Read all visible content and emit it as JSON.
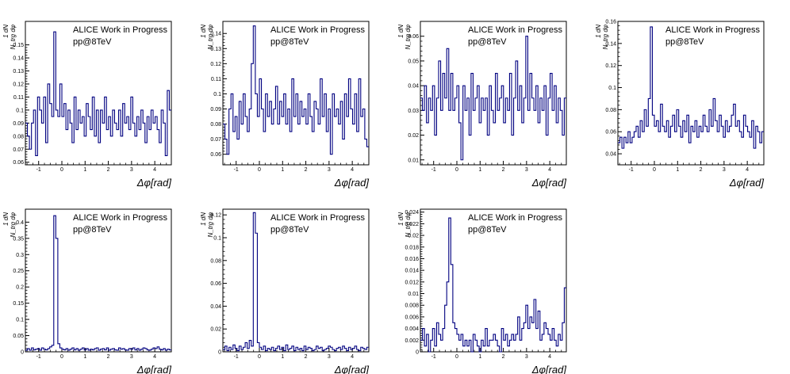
{
  "figure": {
    "annotation_line1": "ALICE Work in Progress",
    "annotation_line2": "pp@8TeV",
    "x_axis_label": "Δφ[rad]",
    "y_axis_label_top": "1  dN",
    "y_axis_label_bottom": "N_trg dφ",
    "line_color": "#000080"
  },
  "chart_data": [
    {
      "type": "line",
      "step": true,
      "xlim": [
        -1.5708,
        4.7124
      ],
      "ylim": [
        0.058,
        0.168
      ],
      "xticks": [
        -1,
        0,
        1,
        2,
        3,
        4
      ],
      "yticks": [
        0.06,
        0.07,
        0.08,
        0.09,
        0.1,
        0.11,
        0.12,
        0.13,
        0.14,
        0.15
      ],
      "ytick_labels": [
        "0.06",
        "0.07",
        "0.08",
        "0.09",
        "0.1",
        "0.11",
        "0.12",
        "0.13",
        "0.14",
        "0.15"
      ],
      "values": [
        0.09,
        0.08,
        0.07,
        0.09,
        0.1,
        0.065,
        0.11,
        0.1,
        0.09,
        0.11,
        0.075,
        0.12,
        0.105,
        0.095,
        0.16,
        0.1,
        0.095,
        0.12,
        0.095,
        0.105,
        0.085,
        0.1,
        0.09,
        0.075,
        0.11,
        0.085,
        0.1,
        0.09,
        0.095,
        0.08,
        0.105,
        0.095,
        0.085,
        0.11,
        0.08,
        0.1,
        0.075,
        0.1,
        0.09,
        0.11,
        0.085,
        0.095,
        0.08,
        0.1,
        0.09,
        0.085,
        0.1,
        0.08,
        0.105,
        0.09,
        0.095,
        0.085,
        0.11,
        0.09,
        0.08,
        0.095,
        0.085,
        0.1,
        0.09,
        0.075,
        0.095,
        0.085,
        0.1,
        0.09,
        0.095,
        0.085,
        0.075,
        0.1,
        0.09,
        0.065,
        0.115,
        0.1
      ]
    },
    {
      "type": "line",
      "step": true,
      "xlim": [
        -1.5708,
        4.7124
      ],
      "ylim": [
        0.053,
        0.148
      ],
      "xticks": [
        -1,
        0,
        1,
        2,
        3,
        4
      ],
      "yticks": [
        0.06,
        0.07,
        0.08,
        0.09,
        0.1,
        0.11,
        0.12,
        0.13,
        0.14
      ],
      "ytick_labels": [
        "0.06",
        "0.07",
        "0.08",
        "0.09",
        "0.1",
        "0.11",
        "0.12",
        "0.13",
        "0.14"
      ],
      "values": [
        0.08,
        0.07,
        0.06,
        0.09,
        0.1,
        0.075,
        0.085,
        0.07,
        0.095,
        0.08,
        0.1,
        0.085,
        0.075,
        0.09,
        0.12,
        0.145,
        0.1,
        0.085,
        0.11,
        0.09,
        0.075,
        0.1,
        0.085,
        0.095,
        0.08,
        0.09,
        0.105,
        0.08,
        0.095,
        0.085,
        0.1,
        0.08,
        0.09,
        0.075,
        0.11,
        0.085,
        0.1,
        0.08,
        0.095,
        0.085,
        0.09,
        0.08,
        0.1,
        0.085,
        0.075,
        0.095,
        0.09,
        0.08,
        0.11,
        0.085,
        0.1,
        0.075,
        0.09,
        0.06,
        0.1,
        0.085,
        0.09,
        0.08,
        0.095,
        0.07,
        0.1,
        0.085,
        0.11,
        0.09,
        0.08,
        0.1,
        0.075,
        0.11,
        0.085,
        0.09,
        0.07,
        0.065
      ]
    },
    {
      "type": "line",
      "step": true,
      "xlim": [
        -1.5708,
        4.7124
      ],
      "ylim": [
        0.008,
        0.066
      ],
      "xticks": [
        -1,
        0,
        1,
        2,
        3,
        4
      ],
      "yticks": [
        0.01,
        0.02,
        0.03,
        0.04,
        0.05,
        0.06
      ],
      "ytick_labels": [
        "0.01",
        "0.02",
        "0.03",
        "0.04",
        "0.05",
        "0.06"
      ],
      "values": [
        0.035,
        0.03,
        0.04,
        0.025,
        0.035,
        0.03,
        0.04,
        0.02,
        0.035,
        0.05,
        0.03,
        0.045,
        0.035,
        0.055,
        0.03,
        0.045,
        0.03,
        0.035,
        0.04,
        0.025,
        0.01,
        0.04,
        0.03,
        0.035,
        0.02,
        0.045,
        0.03,
        0.035,
        0.04,
        0.025,
        0.035,
        0.03,
        0.035,
        0.02,
        0.04,
        0.03,
        0.025,
        0.045,
        0.03,
        0.035,
        0.04,
        0.025,
        0.035,
        0.03,
        0.045,
        0.02,
        0.035,
        0.05,
        0.03,
        0.04,
        0.025,
        0.035,
        0.06,
        0.03,
        0.045,
        0.035,
        0.03,
        0.04,
        0.025,
        0.035,
        0.03,
        0.04,
        0.02,
        0.035,
        0.045,
        0.03,
        0.04,
        0.025,
        0.035,
        0.03,
        0.02,
        0.035
      ]
    },
    {
      "type": "line",
      "step": true,
      "xlim": [
        -1.5708,
        4.7124
      ],
      "ylim": [
        0.03,
        0.16
      ],
      "xticks": [
        -1,
        0,
        1,
        2,
        3,
        4
      ],
      "yticks": [
        0.04,
        0.06,
        0.08,
        0.1,
        0.12,
        0.14,
        0.16
      ],
      "ytick_labels": [
        "0.04",
        "0.06",
        "0.08",
        "0.1",
        "0.12",
        "0.14",
        "0.16"
      ],
      "values": [
        0.05,
        0.055,
        0.045,
        0.055,
        0.05,
        0.06,
        0.05,
        0.055,
        0.06,
        0.065,
        0.055,
        0.07,
        0.06,
        0.08,
        0.065,
        0.09,
        0.155,
        0.075,
        0.065,
        0.07,
        0.06,
        0.085,
        0.065,
        0.06,
        0.07,
        0.055,
        0.065,
        0.075,
        0.06,
        0.08,
        0.065,
        0.055,
        0.07,
        0.06,
        0.075,
        0.05,
        0.065,
        0.06,
        0.07,
        0.055,
        0.065,
        0.06,
        0.075,
        0.065,
        0.06,
        0.08,
        0.065,
        0.09,
        0.07,
        0.06,
        0.075,
        0.065,
        0.055,
        0.07,
        0.06,
        0.065,
        0.075,
        0.085,
        0.065,
        0.07,
        0.06,
        0.055,
        0.075,
        0.065,
        0.06,
        0.055,
        0.07,
        0.045,
        0.065,
        0.06,
        0.05,
        0.06
      ]
    },
    {
      "type": "line",
      "step": true,
      "xlim": [
        -1.5708,
        4.7124
      ],
      "ylim": [
        0,
        0.44
      ],
      "xticks": [
        -1,
        0,
        1,
        2,
        3,
        4
      ],
      "yticks": [
        0,
        0.05,
        0.1,
        0.15,
        0.2,
        0.25,
        0.3,
        0.35,
        0.4
      ],
      "ytick_labels": [
        "0",
        "0.05",
        "0.1",
        "0.15",
        "0.2",
        "0.25",
        "0.3",
        "0.35",
        "0.4"
      ],
      "values": [
        0.005,
        0.01,
        0.005,
        0.012,
        0.006,
        0.008,
        0.01,
        0.005,
        0.012,
        0.008,
        0.006,
        0.01,
        0.015,
        0.02,
        0.42,
        0.35,
        0.025,
        0.012,
        0.008,
        0.006,
        0.01,
        0.005,
        0.008,
        0.012,
        0.006,
        0.01,
        0.005,
        0.008,
        0.012,
        0.006,
        0.01,
        0.005,
        0.008,
        0.006,
        0.01,
        0.012,
        0.005,
        0.008,
        0.01,
        0.006,
        0.012,
        0.005,
        0.008,
        0.01,
        0.006,
        0.005,
        0.012,
        0.008,
        0.01,
        0.006,
        0.005,
        0.01,
        0.008,
        0.012,
        0.006,
        0.01,
        0.005,
        0.008,
        0.012,
        0.01,
        0.006,
        0.005,
        0.008,
        0.012,
        0.01,
        0.015,
        0.008,
        0.006,
        0.01,
        0.005,
        0.008,
        0.006
      ]
    },
    {
      "type": "line",
      "step": true,
      "xlim": [
        -1.5708,
        4.7124
      ],
      "ylim": [
        0,
        0.125
      ],
      "xticks": [
        -1,
        0,
        1,
        2,
        3,
        4
      ],
      "yticks": [
        0,
        0.02,
        0.04,
        0.06,
        0.08,
        0.1,
        0.12
      ],
      "ytick_labels": [
        "0",
        "0.02",
        "0.04",
        "0.06",
        "0.08",
        "0.1",
        "0.12"
      ],
      "values": [
        0.002,
        0.005,
        0.001,
        0.004,
        0.002,
        0.006,
        0.003,
        0.001,
        0.005,
        0.002,
        0.004,
        0.008,
        0.003,
        0.01,
        0.005,
        0.122,
        0.104,
        0.008,
        0.004,
        0.002,
        0.005,
        0.001,
        0.003,
        0.002,
        0.004,
        0.001,
        0.003,
        0.005,
        0.002,
        0.004,
        0.001,
        0.006,
        0.002,
        0.003,
        0.005,
        0.001,
        0.004,
        0.002,
        0.003,
        0.001,
        0.005,
        0.002,
        0.004,
        0.003,
        0.001,
        0.002,
        0.005,
        0.003,
        0.004,
        0.001,
        0.002,
        0.003,
        0.005,
        0.004,
        0.002,
        0.001,
        0.003,
        0.004,
        0.002,
        0.005,
        0.003,
        0.001,
        0.004,
        0.002,
        0.003,
        0.005,
        0.002,
        0.001,
        0.004,
        0.003,
        0.002,
        0.004
      ]
    },
    {
      "type": "line",
      "step": true,
      "xlim": [
        -1.5708,
        4.7124
      ],
      "ylim": [
        0,
        0.0245
      ],
      "xticks": [
        -1,
        0,
        1,
        2,
        3,
        4
      ],
      "yticks": [
        0,
        0.002,
        0.004,
        0.006,
        0.008,
        0.01,
        0.012,
        0.014,
        0.016,
        0.018,
        0.02,
        0.022,
        0.024
      ],
      "ytick_labels": [
        "0",
        "0.002",
        "0.004",
        "0.006",
        "0.008",
        "0.01",
        "0.012",
        "0.014",
        "0.016",
        "0.018",
        "0.02",
        "0.022",
        "0.024"
      ],
      "values": [
        0.002,
        0.004,
        0.001,
        0.003,
        0,
        0.002,
        0.004,
        0.001,
        0.005,
        0.003,
        0.002,
        0.004,
        0.008,
        0.012,
        0.023,
        0.015,
        0.005,
        0.004,
        0.003,
        0.002,
        0.003,
        0.001,
        0.002,
        0.001,
        0.002,
        0,
        0.003,
        0.002,
        0.001,
        0,
        0.002,
        0.001,
        0.004,
        0.001,
        0.002,
        0.002,
        0.003,
        0.002,
        0.001,
        0,
        0.004,
        0.002,
        0.003,
        0.001,
        0.002,
        0.003,
        0.002,
        0.003,
        0.006,
        0.002,
        0.004,
        0.005,
        0.008,
        0.004,
        0.006,
        0.005,
        0.009,
        0.004,
        0.007,
        0.002,
        0.003,
        0.005,
        0.004,
        0.003,
        0.002,
        0.004,
        0.002,
        0.001,
        0.003,
        0.002,
        0.005,
        0.011
      ]
    }
  ]
}
